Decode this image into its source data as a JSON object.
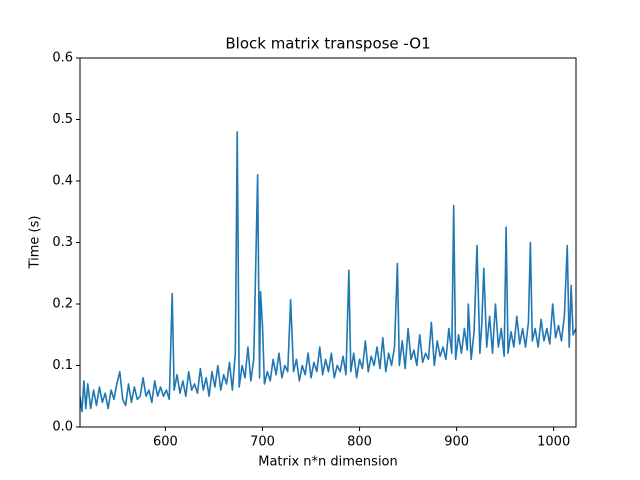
{
  "chart_data": {
    "type": "line",
    "title": "Block matrix transpose -O1",
    "x_label": "Matrix n*n dimension",
    "y_label": "Time (s)",
    "xlim": [
      512,
      1023
    ],
    "ylim": [
      0,
      0.6
    ],
    "xticks": [
      600,
      700,
      800,
      900,
      1000
    ],
    "yticks": [
      {
        "value": 0,
        "label": "0.0"
      },
      0.1,
      0.2,
      0.3,
      0.4,
      0.5,
      0.6
    ],
    "grid": false,
    "series": [
      {
        "color": "#1f77b4",
        "x": [
          512,
          514,
          516,
          518,
          520,
          523,
          526,
          529,
          532,
          535,
          538,
          541,
          544,
          547,
          550,
          553,
          556,
          559,
          562,
          565,
          568,
          571,
          574,
          577,
          580,
          583,
          586,
          589,
          592,
          595,
          598,
          601,
          604,
          607,
          609,
          612,
          615,
          618,
          621,
          624,
          627,
          630,
          633,
          636,
          639,
          642,
          645,
          648,
          651,
          654,
          657,
          660,
          663,
          666,
          669,
          672,
          674,
          676,
          679,
          682,
          685,
          688,
          691,
          695,
          697,
          698,
          700,
          702,
          705,
          708,
          711,
          714,
          717,
          720,
          723,
          726,
          729,
          732,
          735,
          738,
          741,
          744,
          747,
          750,
          753,
          756,
          759,
          762,
          765,
          768,
          771,
          774,
          777,
          780,
          783,
          786,
          789,
          791,
          794,
          797,
          800,
          803,
          806,
          809,
          812,
          815,
          818,
          821,
          824,
          827,
          830,
          833,
          836,
          839,
          841,
          844,
          847,
          850,
          853,
          856,
          859,
          862,
          865,
          868,
          871,
          874,
          877,
          880,
          883,
          886,
          889,
          892,
          895,
          897,
          899,
          902,
          905,
          908,
          911,
          912,
          915,
          918,
          921,
          924,
          926,
          928,
          931,
          934,
          937,
          940,
          943,
          946,
          949,
          951,
          953,
          956,
          959,
          962,
          965,
          968,
          971,
          974,
          976,
          978,
          981,
          984,
          987,
          990,
          993,
          996,
          999,
          1002,
          1005,
          1008,
          1011,
          1014,
          1016,
          1018,
          1020,
          1023
        ],
        "values": [
          0.05,
          0.025,
          0.075,
          0.03,
          0.07,
          0.03,
          0.06,
          0.035,
          0.065,
          0.04,
          0.055,
          0.03,
          0.06,
          0.045,
          0.07,
          0.09,
          0.045,
          0.035,
          0.07,
          0.04,
          0.065,
          0.045,
          0.05,
          0.08,
          0.05,
          0.06,
          0.04,
          0.075,
          0.05,
          0.065,
          0.05,
          0.06,
          0.045,
          0.217,
          0.06,
          0.085,
          0.055,
          0.075,
          0.05,
          0.09,
          0.06,
          0.07,
          0.055,
          0.095,
          0.06,
          0.08,
          0.05,
          0.09,
          0.065,
          0.1,
          0.06,
          0.085,
          0.07,
          0.105,
          0.06,
          0.12,
          0.48,
          0.065,
          0.1,
          0.08,
          0.13,
          0.075,
          0.11,
          0.41,
          0.08,
          0.22,
          0.165,
          0.07,
          0.09,
          0.075,
          0.11,
          0.085,
          0.12,
          0.08,
          0.1,
          0.09,
          0.207,
          0.09,
          0.11,
          0.075,
          0.1,
          0.085,
          0.12,
          0.08,
          0.105,
          0.09,
          0.13,
          0.085,
          0.11,
          0.09,
          0.12,
          0.08,
          0.1,
          0.09,
          0.115,
          0.085,
          0.255,
          0.09,
          0.12,
          0.08,
          0.11,
          0.095,
          0.14,
          0.09,
          0.115,
          0.1,
          0.13,
          0.095,
          0.145,
          0.09,
          0.12,
          0.1,
          0.13,
          0.266,
          0.1,
          0.14,
          0.095,
          0.16,
          0.11,
          0.125,
          0.1,
          0.15,
          0.105,
          0.12,
          0.11,
          0.17,
          0.1,
          0.14,
          0.115,
          0.13,
          0.11,
          0.16,
          0.12,
          0.36,
          0.11,
          0.15,
          0.12,
          0.16,
          0.125,
          0.2,
          0.11,
          0.155,
          0.295,
          0.12,
          0.17,
          0.258,
          0.13,
          0.18,
          0.12,
          0.2,
          0.13,
          0.16,
          0.115,
          0.325,
          0.12,
          0.155,
          0.13,
          0.18,
          0.135,
          0.16,
          0.13,
          0.17,
          0.3,
          0.14,
          0.16,
          0.13,
          0.175,
          0.14,
          0.16,
          0.135,
          0.2,
          0.145,
          0.165,
          0.14,
          0.18,
          0.295,
          0.13,
          0.23,
          0.15,
          0.16
        ]
      }
    ]
  }
}
